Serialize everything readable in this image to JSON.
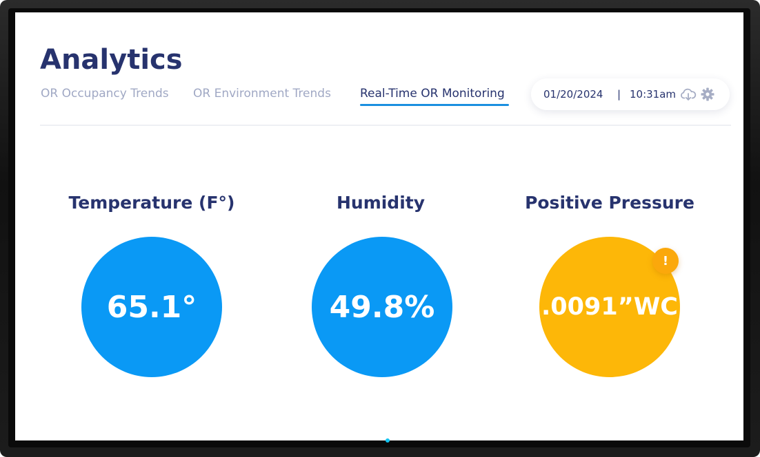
{
  "header": {
    "title": "Analytics"
  },
  "tabs": [
    {
      "label": "OR Occupancy Trends"
    },
    {
      "label": "OR Environment Trends"
    },
    {
      "label": "Real-Time OR Monitoring"
    }
  ],
  "datetime": {
    "date": "01/20/2024",
    "separator": "|",
    "time": "10:31am"
  },
  "icons": {
    "download": "cloud-download-icon",
    "settings": "gear-icon",
    "alert": "alert-icon"
  },
  "metrics": [
    {
      "title": "Temperature (F°)",
      "value": "65.1°",
      "status": "normal"
    },
    {
      "title": "Humidity",
      "value": "49.8%",
      "status": "normal"
    },
    {
      "title": "Positive Pressure",
      "value": ".0091”WC",
      "status": "warning"
    }
  ],
  "alert": {
    "symbol": "!"
  },
  "colors": {
    "title": "#27336e",
    "tab_inactive": "#a0a8c4",
    "tab_active_underline": "#1a8fe0",
    "normal": "#0a99f5",
    "warning": "#fdb708",
    "indicator": "#12c3f0"
  }
}
